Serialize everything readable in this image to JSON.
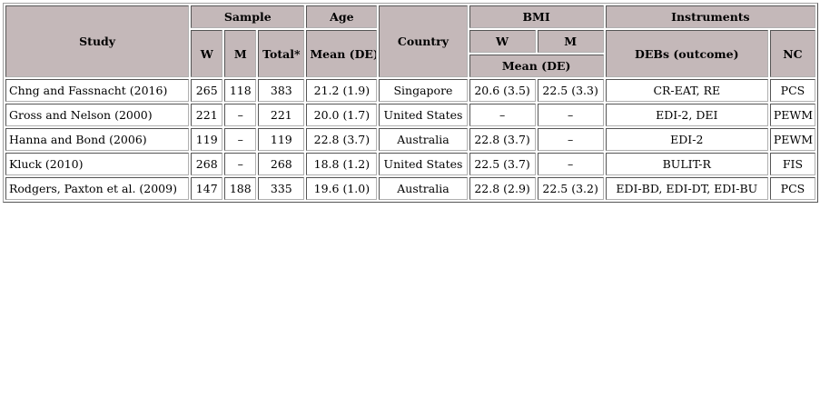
{
  "header": {
    "study": "Study",
    "sample": "Sample",
    "age": "Age",
    "country": "Country",
    "bmi": "BMI",
    "instruments": "Instruments",
    "w": "W",
    "m": "M",
    "total": "Total*",
    "age_mean": "Mean (DE)",
    "bmi_w": "W",
    "bmi_m": "M",
    "bmi_mean": "Mean (DE)",
    "debs": "DEBs (outcome)",
    "nc": "NC"
  },
  "rows": [
    {
      "study": "Chng and Fassnacht (2016)",
      "w": "265",
      "m": "118",
      "total": "383",
      "age": "21.2 (1.9)",
      "country": "Singapore",
      "bmi_w": "20.6 (3.5)",
      "bmi_m": "22.5 (3.3)",
      "debs": "CR-EAT, RE",
      "nc": "PCS"
    },
    {
      "study": "Gross and Nelson (2000)",
      "w": "221",
      "m": "–",
      "total": "221",
      "age": "20.0 (1.7)",
      "country": "United States",
      "bmi_w": "–",
      "bmi_m": "–",
      "debs": "EDI-2, DEI",
      "nc": "PEWM"
    },
    {
      "study": "Hanna and Bond (2006)",
      "w": "119",
      "m": "–",
      "total": "119",
      "age": "22.8 (3.7)",
      "country": "Australia",
      "bmi_w": "22.8 (3.7)",
      "bmi_m": "–",
      "debs": "EDI-2",
      "nc": "PEWM"
    },
    {
      "study": "Kluck (2010)",
      "w": "268",
      "m": "–",
      "total": "268",
      "age": "18.8 (1.2)",
      "country": "United States",
      "bmi_w": "22.5 (3.7)",
      "bmi_m": "–",
      "debs": "BULIT-R",
      "nc": "FIS"
    },
    {
      "study": "Rodgers, Paxton et al. (2009)",
      "w": "147",
      "m": "188",
      "total": "335",
      "age": "19.6 (1.0)",
      "country": "Australia",
      "bmi_w": "22.8 (2.9)",
      "bmi_m": "22.5 (3.2)",
      "debs": "EDI-BD, EDI-DT, EDI-BU",
      "nc": "PCS"
    }
  ],
  "colors": {
    "header_bg": "#c4b8b9"
  }
}
